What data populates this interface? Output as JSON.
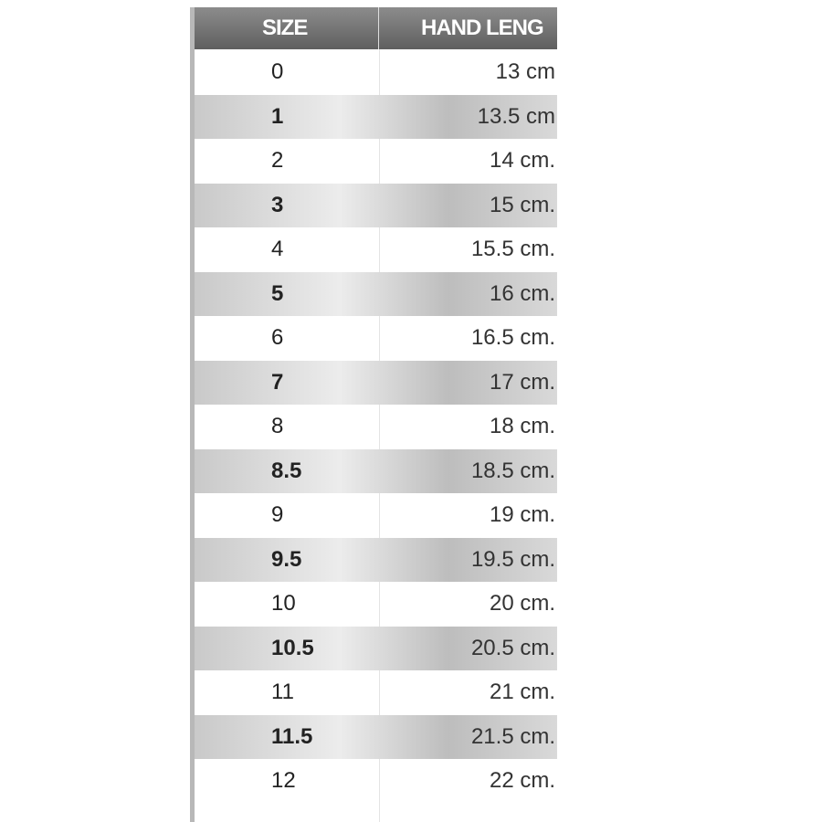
{
  "table": {
    "header": [
      "SIZE",
      "HAND LENG"
    ],
    "rows": [
      [
        "0",
        "13 cm"
      ],
      [
        "1",
        "13.5 cm"
      ],
      [
        "2",
        "14 cm."
      ],
      [
        "3",
        "15 cm."
      ],
      [
        "4",
        "15.5 cm."
      ],
      [
        "5",
        "16 cm."
      ],
      [
        "6",
        "16.5 cm."
      ],
      [
        "7",
        "17 cm."
      ],
      [
        "8",
        "18 cm."
      ],
      [
        "8.5",
        "18.5 cm."
      ],
      [
        "9",
        "19 cm."
      ],
      [
        "9.5",
        "19.5 cm."
      ],
      [
        "10",
        "20 cm."
      ],
      [
        "10.5",
        "20.5 cm."
      ],
      [
        "11",
        "21 cm."
      ],
      [
        "11.5",
        "21.5 cm."
      ],
      [
        "12",
        "22 cm."
      ]
    ]
  }
}
